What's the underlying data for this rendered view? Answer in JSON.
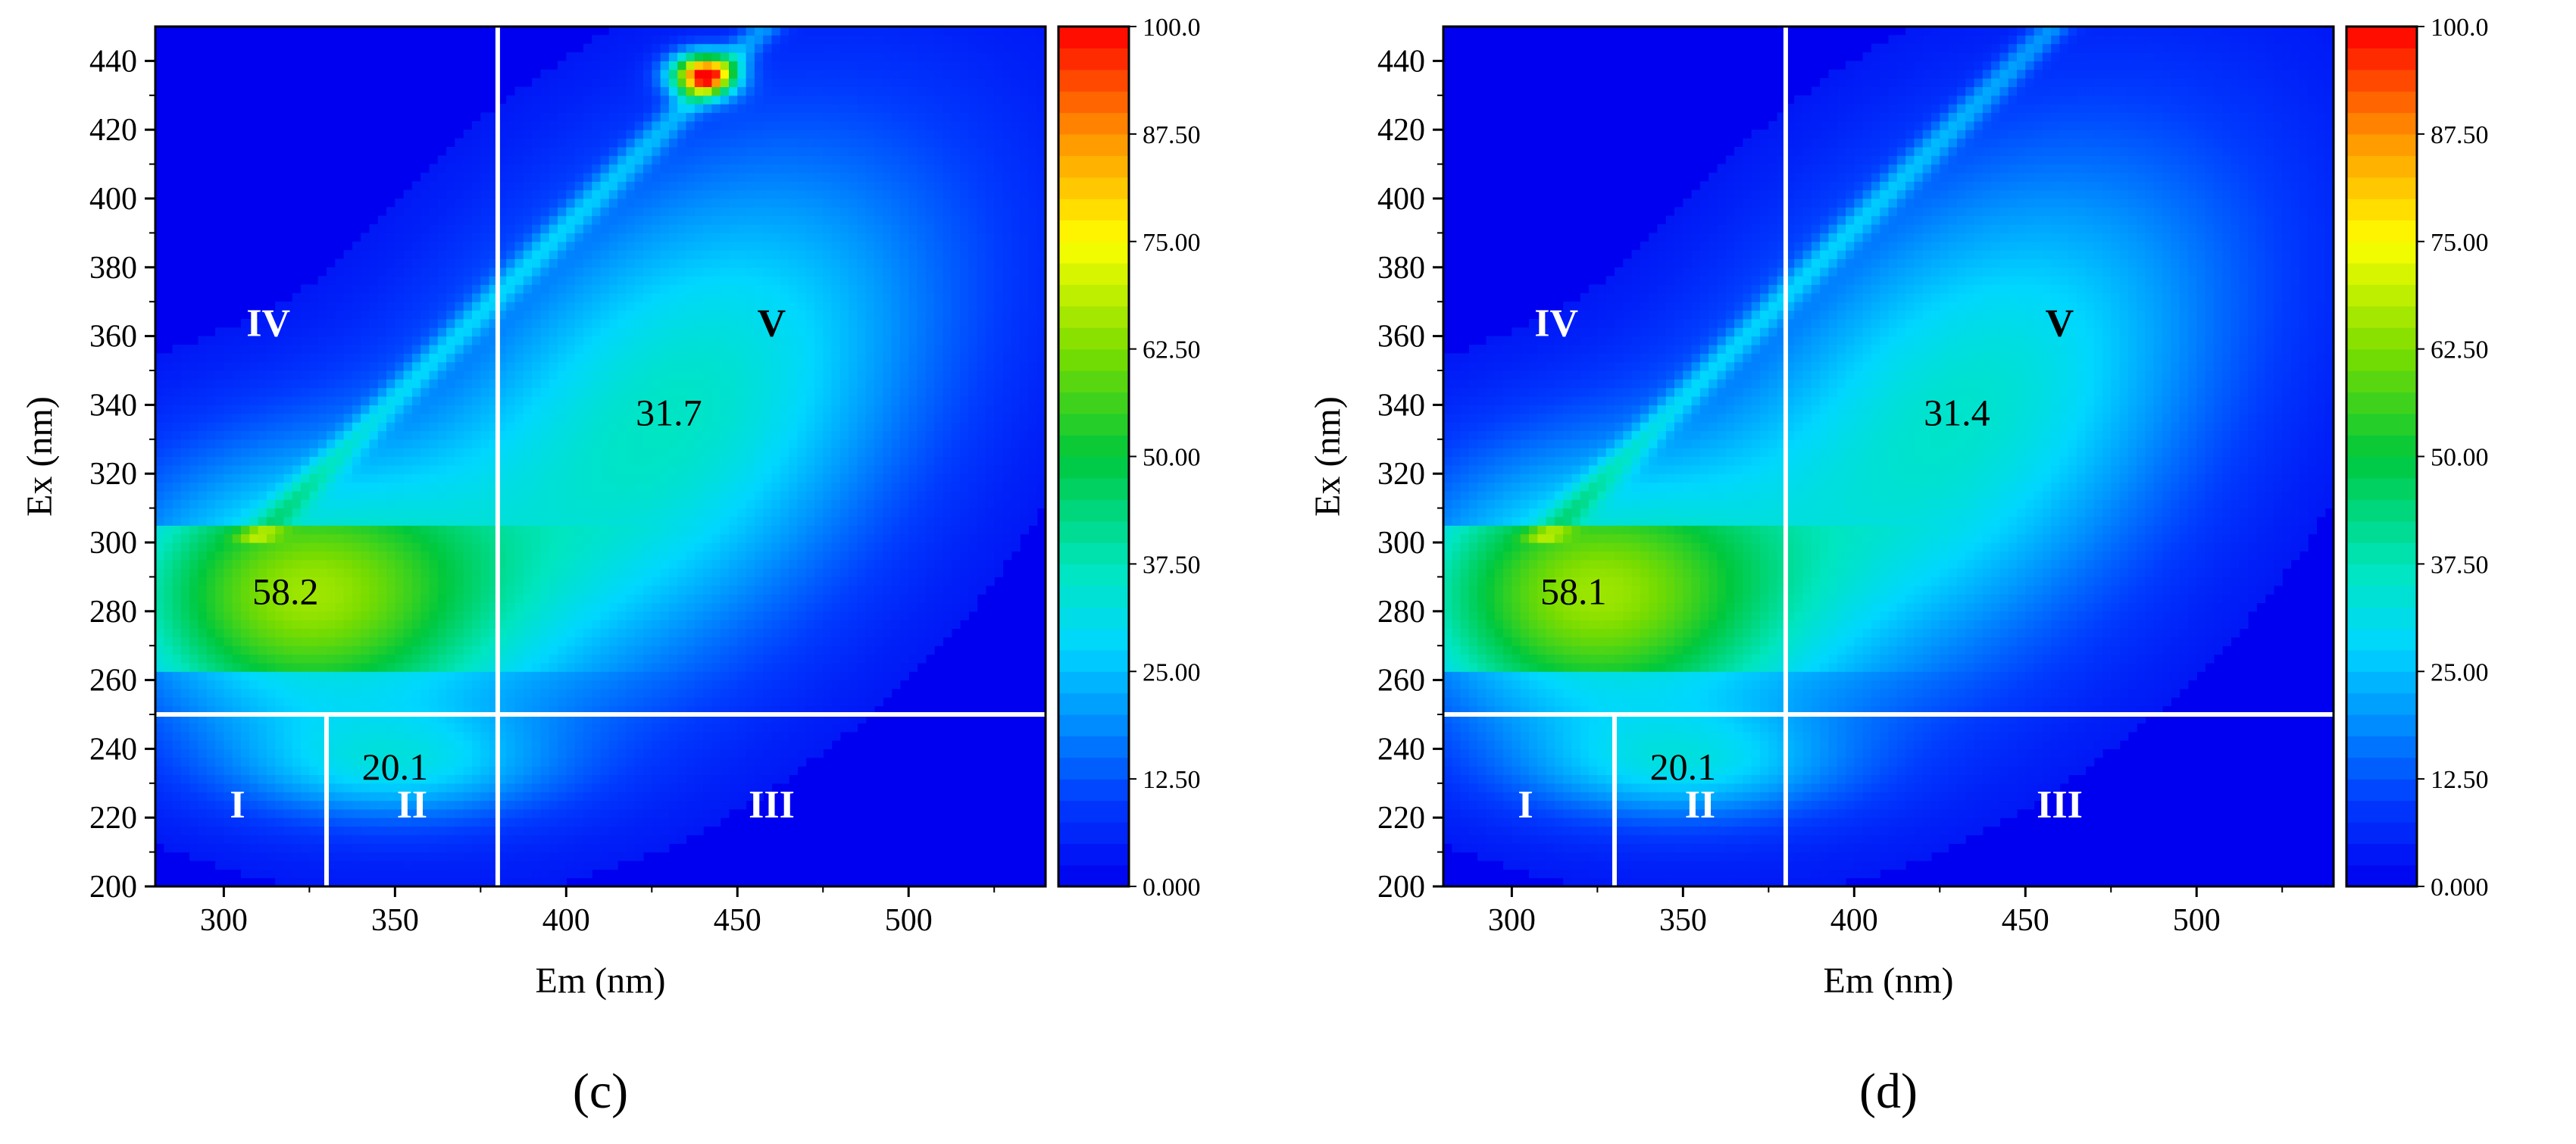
{
  "chart_data": [
    {
      "type": "heatmap",
      "panel_label": "(c)",
      "xlabel": "Em (nm)",
      "ylabel": "Ex (nm)",
      "xlim": [
        280,
        540
      ],
      "ylim": [
        200,
        450
      ],
      "xticks": [
        300,
        350,
        400,
        450,
        500
      ],
      "yticks": [
        200,
        220,
        240,
        260,
        280,
        300,
        320,
        340,
        360,
        380,
        400,
        420,
        440
      ],
      "colorbar": {
        "min": 0,
        "max": 100,
        "ticks": [
          "0.000",
          "12.50",
          "25.00",
          "37.50",
          "50.00",
          "62.50",
          "75.00",
          "87.50",
          "100.0"
        ]
      },
      "region_boundaries": {
        "ex_split": 250,
        "em_split_low": 330,
        "em_split_high": 380
      },
      "regions": [
        {
          "label": "I",
          "em": 304,
          "ex": 224
        },
        {
          "label": "II",
          "em": 355,
          "ex": 224
        },
        {
          "label": "III",
          "em": 460,
          "ex": 224
        },
        {
          "label": "IV",
          "em": 313,
          "ex": 364
        },
        {
          "label": "V",
          "em": 460,
          "ex": 364
        }
      ],
      "peaks": [
        {
          "value": "58.2",
          "em": 318,
          "ex": 286
        },
        {
          "value": "20.1",
          "em": 350,
          "ex": 235
        },
        {
          "value": "31.7",
          "em": 430,
          "ex": 338
        }
      ]
    },
    {
      "type": "heatmap",
      "panel_label": "(d)",
      "xlabel": "Em (nm)",
      "ylabel": "Ex (nm)",
      "xlim": [
        280,
        540
      ],
      "ylim": [
        200,
        450
      ],
      "xticks": [
        300,
        350,
        400,
        450,
        500
      ],
      "yticks": [
        200,
        220,
        240,
        260,
        280,
        300,
        320,
        340,
        360,
        380,
        400,
        420,
        440
      ],
      "colorbar": {
        "min": 0,
        "max": 100,
        "ticks": [
          "0.000",
          "12.50",
          "25.00",
          "37.50",
          "50.00",
          "62.50",
          "75.00",
          "87.50",
          "100.0"
        ]
      },
      "region_boundaries": {
        "ex_split": 250,
        "em_split_low": 330,
        "em_split_high": 380
      },
      "regions": [
        {
          "label": "I",
          "em": 304,
          "ex": 224
        },
        {
          "label": "II",
          "em": 355,
          "ex": 224
        },
        {
          "label": "III",
          "em": 460,
          "ex": 224
        },
        {
          "label": "IV",
          "em": 313,
          "ex": 364
        },
        {
          "label": "V",
          "em": 460,
          "ex": 364
        }
      ],
      "peaks": [
        {
          "value": "58.1",
          "em": 318,
          "ex": 286
        },
        {
          "value": "20.1",
          "em": 350,
          "ex": 235
        },
        {
          "value": "31.4",
          "em": 430,
          "ex": 338
        }
      ]
    }
  ]
}
